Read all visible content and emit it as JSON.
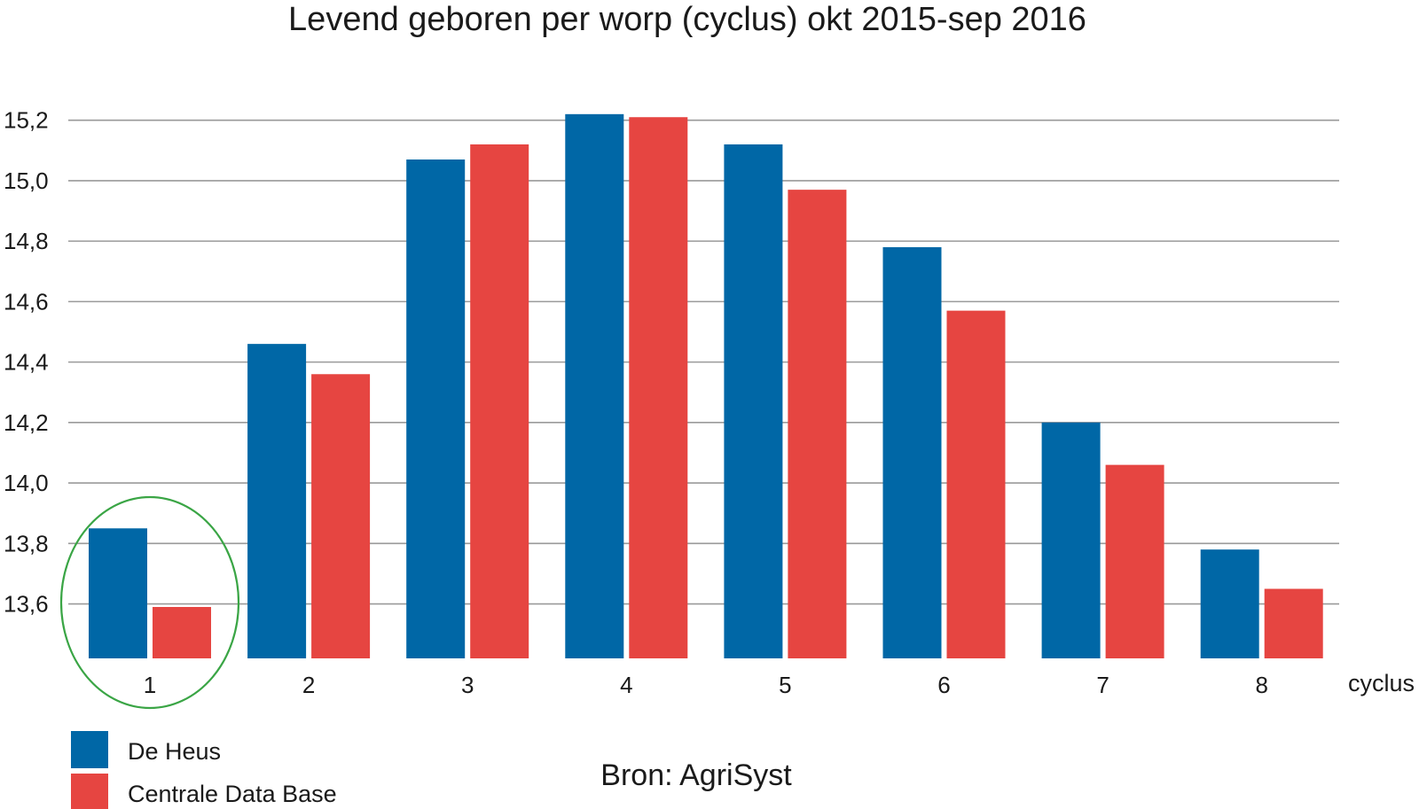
{
  "chart_data": {
    "type": "bar",
    "title": "Levend geboren per worp (cyclus) okt 2015-sep 2016",
    "xlabel": "cyclus",
    "ylabel": "",
    "categories": [
      "1",
      "2",
      "3",
      "4",
      "5",
      "6",
      "7",
      "8"
    ],
    "series": [
      {
        "name": "De Heus",
        "color": "#0067a6",
        "values": [
          13.85,
          14.46,
          15.07,
          15.22,
          15.12,
          14.78,
          14.2,
          13.78
        ]
      },
      {
        "name": "Centrale Data Base",
        "color": "#e64541",
        "values": [
          13.59,
          14.36,
          15.12,
          15.21,
          14.97,
          14.57,
          14.06,
          13.65
        ]
      }
    ],
    "ylim": [
      13.42,
      15.24
    ],
    "yticks": [
      {
        "value": 13.6,
        "label": "13,6"
      },
      {
        "value": 13.8,
        "label": "13,8"
      },
      {
        "value": 14.0,
        "label": "14,0"
      },
      {
        "value": 14.2,
        "label": "14,2"
      },
      {
        "value": 14.4,
        "label": "14,4"
      },
      {
        "value": 14.6,
        "label": "14,6"
      },
      {
        "value": 14.8,
        "label": "14,8"
      },
      {
        "value": 15.0,
        "label": "15,0"
      },
      {
        "value": 15.2,
        "label": "15,2"
      }
    ],
    "grid": true,
    "legend_position": "bottom-left",
    "highlight": {
      "category": "1",
      "shape": "ellipse",
      "color": "#3aa545"
    },
    "source": "Bron: AgriSyst"
  }
}
